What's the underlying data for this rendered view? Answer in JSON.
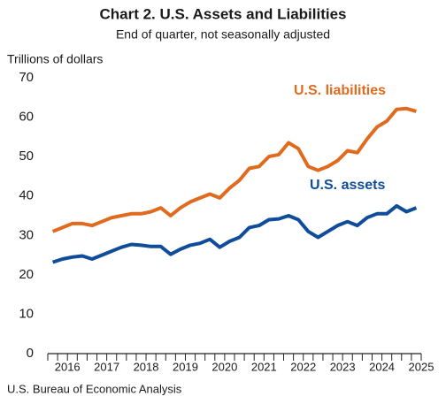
{
  "chart_data": {
    "type": "line",
    "title": "Chart 2. U.S. Assets and Liabilities",
    "subtitle": "End of quarter, not seasonally adjusted",
    "y_axis_label": "Trillions of dollars",
    "source": "U.S. Bureau of Economic Analysis",
    "categories": [
      null,
      "2016",
      null,
      null,
      null,
      "2017",
      null,
      null,
      null,
      "2018",
      null,
      null,
      null,
      "2019",
      null,
      null,
      null,
      "2020",
      null,
      null,
      null,
      "2021",
      null,
      null,
      null,
      "2022",
      null,
      null,
      null,
      "2023",
      null,
      null,
      null,
      "2024",
      null,
      null,
      null,
      "2025"
    ],
    "series": [
      {
        "name": "U.S. liabilities",
        "color": "#e06b1f",
        "values": [
          31,
          32,
          33,
          33,
          32.5,
          33.5,
          34.5,
          35,
          35.5,
          35.5,
          36,
          37,
          35,
          37,
          38.5,
          39.5,
          40.5,
          39.5,
          42,
          44,
          47,
          47.5,
          50,
          50.5,
          53.5,
          52,
          47.5,
          46.5,
          47.5,
          49,
          51.5,
          51,
          54.5,
          57.5,
          59,
          62,
          62.2,
          61.5
        ]
      },
      {
        "name": "U.S. assets",
        "color": "#0f4c9a",
        "values": [
          23.2,
          24,
          24.5,
          24.8,
          24,
          25,
          26,
          27,
          27.7,
          27.5,
          27.2,
          27.2,
          25.2,
          26.5,
          27.5,
          28,
          29,
          27,
          28.5,
          29.5,
          32,
          32.5,
          34,
          34.2,
          35,
          34,
          31,
          29.5,
          31,
          32.5,
          33.5,
          32.5,
          34.5,
          35.5,
          35.5,
          37.5,
          36,
          37
        ]
      }
    ],
    "ylim": [
      0,
      70
    ],
    "yticks": [
      0,
      10,
      20,
      30,
      40,
      50,
      60,
      70
    ],
    "grid": false
  }
}
